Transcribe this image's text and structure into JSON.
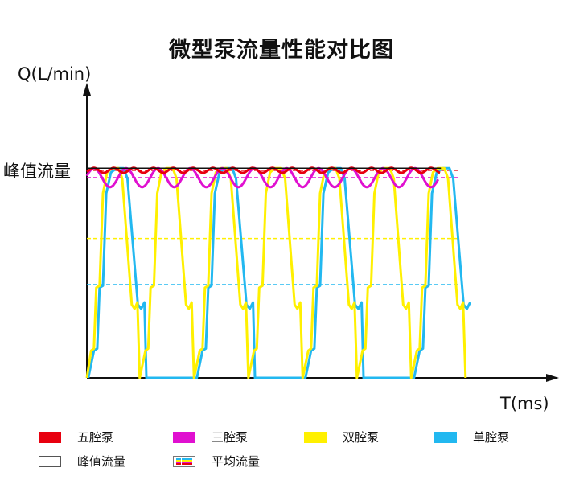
{
  "chart_data": {
    "type": "line",
    "title": "微型泵流量性能对比图",
    "ylabel": "Q(L/min)",
    "xlabel": "T(ms)",
    "y_marker_label": "峰值流量",
    "xlim": [
      0,
      100
    ],
    "ylim": [
      0,
      1.4
    ],
    "grid": false,
    "legend_position": "bottom",
    "peak_value": 1.0,
    "peak_line_end": 75,
    "series": [
      {
        "name": "五腔泵",
        "color": "#e8000f",
        "kind": "ripple",
        "mean": 0.99,
        "amplitude": 0.012,
        "period": 4.2,
        "end": 75,
        "average": 0.99
      },
      {
        "name": "三腔泵",
        "color": "#e010d0",
        "kind": "ripple",
        "mean": 0.955,
        "amplitude": 0.045,
        "period": 6.8,
        "end": 74.5,
        "average": 0.955
      },
      {
        "name": "双腔泵",
        "color": "#fff000",
        "kind": "pulse",
        "period": 11.5,
        "offset": -0.3,
        "end": 81,
        "cycle": [
          [
            0,
            0
          ],
          [
            1.2,
            0.13
          ],
          [
            1.8,
            0.14
          ],
          [
            2.3,
            0.43
          ],
          [
            3.0,
            0.44
          ],
          [
            3.7,
            0.88
          ],
          [
            4.6,
            0.98
          ],
          [
            5.6,
            1
          ],
          [
            7.0,
            1
          ],
          [
            7.8,
            0.95
          ],
          [
            9.8,
            0.35
          ],
          [
            10.4,
            0.33
          ],
          [
            11.0,
            0.36
          ],
          [
            11.5,
            0
          ]
        ],
        "average": 0.665
      },
      {
        "name": "单腔泵",
        "color": "#22b8f0",
        "kind": "pulse",
        "period": 23,
        "offset": 0.3,
        "end": 81.5,
        "cycle": [
          [
            0,
            0
          ],
          [
            1.2,
            0.13
          ],
          [
            1.9,
            0.14
          ],
          [
            2.4,
            0.43
          ],
          [
            3.1,
            0.44
          ],
          [
            3.8,
            0.88
          ],
          [
            4.8,
            0.98
          ],
          [
            6,
            1
          ],
          [
            7.5,
            1
          ],
          [
            8.3,
            0.95
          ],
          [
            10.5,
            0.35
          ],
          [
            11.2,
            0.33
          ],
          [
            11.9,
            0.36
          ],
          [
            12.3,
            0
          ],
          [
            23,
            0
          ]
        ],
        "average": 0.445
      }
    ],
    "average_line_end": 79,
    "legend": [
      {
        "label": "五腔泵",
        "swatch": "#e8000f"
      },
      {
        "label": "三腔泵",
        "swatch": "#e010d0"
      },
      {
        "label": "双腔泵",
        "swatch": "#fff000"
      },
      {
        "label": "单腔泵",
        "swatch": "#22b8f0"
      },
      {
        "label": "峰值流量",
        "swatch": "peak-line"
      },
      {
        "label": "平均流量",
        "swatch": "dashed-average"
      }
    ]
  }
}
